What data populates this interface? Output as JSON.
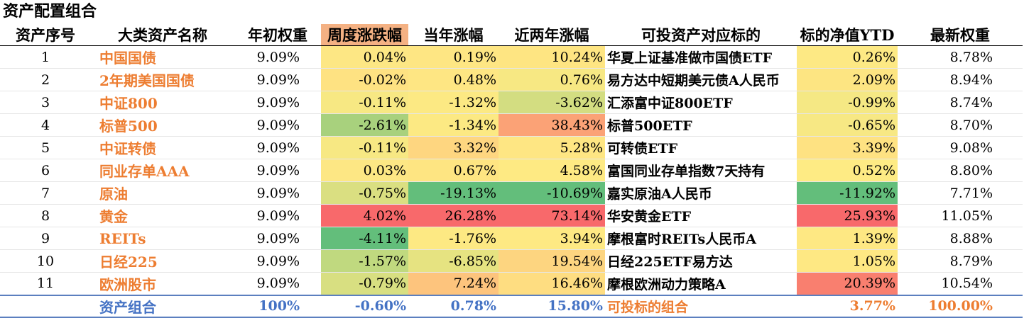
{
  "title": "资产配置组合",
  "headers": [
    "资产序号",
    "大类资产名称",
    "年初权重",
    "周度涨跌幅",
    "当年涨幅",
    "近两年涨幅",
    "可投资产对应标的",
    "标的净值YTD",
    "最新权重"
  ],
  "rows": [
    {
      "idx": "1",
      "name": "中国国债",
      "init_w": "9.09%",
      "week": "0.04%",
      "year": "0.19%",
      "two_year": "10.24%",
      "target": "华夏上证基准做市国债ETF",
      "ytd": "0.26%",
      "latest_w": "8.78%"
    },
    {
      "idx": "2",
      "name": "2年期美国国债",
      "init_w": "9.09%",
      "week": "-0.02%",
      "year": "0.48%",
      "two_year": "0.76%",
      "target": "易方达中短期美元债A人民币",
      "ytd": "2.09%",
      "latest_w": "8.94%"
    },
    {
      "idx": "3",
      "name": "中证800",
      "init_w": "9.09%",
      "week": "-0.11%",
      "year": "-1.32%",
      "two_year": "-3.62%",
      "target": "汇添富中证800ETF",
      "ytd": "-0.99%",
      "latest_w": "8.74%"
    },
    {
      "idx": "4",
      "name": "标普500",
      "init_w": "9.09%",
      "week": "-2.61%",
      "year": "-1.34%",
      "two_year": "38.43%",
      "target": "标普500ETF",
      "ytd": "-0.65%",
      "latest_w": "8.70%"
    },
    {
      "idx": "5",
      "name": "中证转债",
      "init_w": "9.09%",
      "week": "-0.11%",
      "year": "3.32%",
      "two_year": "5.28%",
      "target": "可转债ETF",
      "ytd": "3.39%",
      "latest_w": "9.08%"
    },
    {
      "idx": "6",
      "name": "同业存单AAA",
      "init_w": "9.09%",
      "week": "0.03%",
      "year": "0.67%",
      "two_year": "4.58%",
      "target": "富国同业存单指数7天持有",
      "ytd": "0.52%",
      "latest_w": "8.80%"
    },
    {
      "idx": "7",
      "name": "原油",
      "init_w": "9.09%",
      "week": "-0.75%",
      "year": "-19.13%",
      "two_year": "-10.69%",
      "target": "嘉实原油A人民币",
      "ytd": "-11.92%",
      "latest_w": "7.71%"
    },
    {
      "idx": "8",
      "name": "黄金",
      "init_w": "9.09%",
      "week": "4.02%",
      "year": "26.28%",
      "two_year": "73.14%",
      "target": "华安黄金ETF",
      "ytd": "25.93%",
      "latest_w": "11.05%"
    },
    {
      "idx": "9",
      "name": "REITs",
      "init_w": "9.09%",
      "week": "-4.11%",
      "year": "-1.76%",
      "two_year": "3.94%",
      "target": "摩根富时REITs人民币A",
      "ytd": "1.39%",
      "latest_w": "8.88%"
    },
    {
      "idx": "10",
      "name": "日经225",
      "init_w": "9.09%",
      "week": "-1.57%",
      "year": "-6.85%",
      "two_year": "19.54%",
      "target": "日经225ETF易方达",
      "ytd": "1.05%",
      "latest_w": "8.79%"
    },
    {
      "idx": "11",
      "name": "欧洲股市",
      "init_w": "9.09%",
      "week": "-0.79%",
      "year": "7.24%",
      "two_year": "16.46%",
      "target": "摩根欧洲动力策略A",
      "ytd": "20.39%",
      "latest_w": "10.54%"
    }
  ],
  "colors": {
    "week": [
      "#fde784",
      "#fee282",
      "#f7e883",
      "#a8d17d",
      "#f7e883",
      "#fde784",
      "#dadf81",
      "#f8696b",
      "#63be7b",
      "#c0d97f",
      "#d8df81"
    ],
    "year": [
      "#fee683",
      "#fee683",
      "#fce983",
      "#fce983",
      "#fed680",
      "#fee582",
      "#63be7b",
      "#f8696b",
      "#fde983",
      "#e6e381",
      "#fdc47d"
    ],
    "two_year": [
      "#fee582",
      "#f7e883",
      "#d3dd81",
      "#fba276",
      "#fee683",
      "#feea83",
      "#63be7b",
      "#f8696b",
      "#fee983",
      "#fdd580",
      "#fedd81"
    ],
    "ytd": [
      "#fde984",
      "#fde582",
      "#f5e884",
      "#f7e884",
      "#fee282",
      "#feeb84",
      "#63be7b",
      "#f8696b",
      "#fee883",
      "#fee883",
      "#f97f6f"
    ]
  },
  "footer": {
    "name": "资产组合",
    "init_w": "100%",
    "week": "-0.60%",
    "year": "0.78%",
    "two_year": "15.80%",
    "target": "可投标的组合",
    "ytd": "3.77%",
    "latest_w": "100.00%"
  }
}
